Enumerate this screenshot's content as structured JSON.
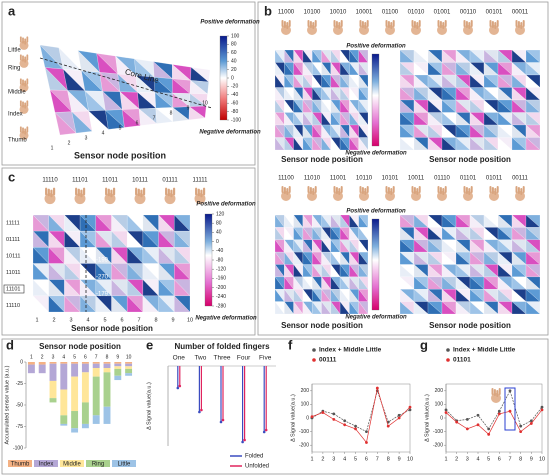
{
  "panels": {
    "a": {
      "label": "a",
      "fingers": [
        "Little",
        "Ring",
        "Middle",
        "Index",
        "Thumb"
      ],
      "core_line": "Core Line",
      "positive": "Positive deformation",
      "negative": "Negative deformation",
      "colorbar_ticks": [
        100,
        80,
        60,
        40,
        20,
        0,
        -20,
        -40,
        -60,
        -80,
        -100
      ],
      "xticks": [
        1,
        2,
        3,
        4,
        5,
        6,
        7,
        8,
        9,
        10
      ],
      "xlabel": "Sensor node position"
    },
    "b": {
      "label": "b",
      "codes_top": [
        "11000",
        "10100",
        "10010",
        "10001",
        "01100",
        "01010",
        "01001",
        "00110",
        "00101",
        "00011"
      ],
      "codes_bottom": [
        "11100",
        "11010",
        "11001",
        "10110",
        "10101",
        "10011",
        "01110",
        "01101",
        "01011",
        "00111"
      ],
      "positive": "Positive deformation",
      "negative": "Negative deformation",
      "xlabel": "Sensor node position"
    },
    "c": {
      "label": "c",
      "codes": [
        "11110",
        "11101",
        "11011",
        "10111",
        "01111",
        "11111"
      ],
      "rows": [
        "11111",
        "01111",
        "10111",
        "11011",
        "11101",
        "11110"
      ],
      "xticks": [
        1,
        2,
        3,
        4,
        5,
        6,
        7,
        8,
        9,
        10
      ],
      "colorbar_ticks": [
        120,
        80,
        40,
        0,
        -40,
        -80,
        -120,
        -160,
        -200,
        -240,
        -280
      ],
      "annotations": [
        -199,
        -270,
        -179
      ],
      "positive": "Positive deformation",
      "negative": "Negative deformation",
      "xlabel": "Sensor node position"
    }
  },
  "chart_data": [
    {
      "panel_label": "d",
      "type": "bar",
      "stacked": true,
      "title": "Sensor node position",
      "ylabel": "Accumulated sensor value (a.u.)",
      "categories": [
        "1",
        "2",
        "3",
        "4",
        "5",
        "6",
        "7",
        "8",
        "9",
        "10"
      ],
      "ylim": [
        -100,
        0
      ],
      "yticks": [
        0,
        -25,
        -50,
        -75,
        -100
      ],
      "series": [
        {
          "name": "Thumb",
          "color": "#f4b183",
          "values": [
            -3,
            -3,
            -2,
            -2,
            -2,
            -2,
            -2,
            -2,
            -2,
            -2
          ]
        },
        {
          "name": "Index",
          "color": "#b4a7d6",
          "values": [
            -10,
            -10,
            -20,
            -30,
            -15,
            -10,
            -5,
            -5,
            -3,
            -3
          ]
        },
        {
          "name": "Middle",
          "color": "#ffe699",
          "values": [
            0,
            0,
            -20,
            -30,
            -40,
            -35,
            -10,
            -5,
            -3,
            -3
          ]
        },
        {
          "name": "Ring",
          "color": "#a9d18e",
          "values": [
            0,
            0,
            -5,
            -10,
            -20,
            -25,
            -45,
            -40,
            -8,
            -5
          ]
        },
        {
          "name": "Little",
          "color": "#9dc3e6",
          "values": [
            0,
            0,
            0,
            -2,
            -5,
            -5,
            -10,
            -20,
            -5,
            -3
          ]
        }
      ]
    },
    {
      "panel_label": "e",
      "type": "stem",
      "title": "Number of folded fingers",
      "ylabel": "Δ Signal value(a.u.)",
      "categories": [
        "One",
        "Two",
        "Three",
        "Four",
        "Five"
      ],
      "ylim": [
        -400,
        0
      ],
      "series": [
        {
          "name": "Folded",
          "color": "#3b4cc0",
          "values": [
            -110,
            -230,
            -280,
            -380,
            -330
          ]
        },
        {
          "name": "Unfolded",
          "color": "#e0245e",
          "values": [
            -100,
            -220,
            -270,
            -370,
            -320
          ]
        }
      ]
    },
    {
      "panel_label": "f",
      "type": "line",
      "ylabel": "Δ Signal value(a.u.)",
      "x": [
        1,
        2,
        3,
        4,
        5,
        6,
        7,
        8,
        9,
        10
      ],
      "xlim": [
        1,
        10
      ],
      "xticks": [
        1,
        2,
        3,
        4,
        5,
        6,
        7,
        8,
        9,
        10
      ],
      "ylim": [
        -250,
        250
      ],
      "yticks": [
        200,
        100,
        0,
        -100,
        -200
      ],
      "legend": "top-left",
      "series": [
        {
          "name": "Index + Middle Little",
          "color": "#555555",
          "values": [
            0,
            50,
            30,
            -20,
            -60,
            -100,
            200,
            -30,
            20,
            60
          ]
        },
        {
          "name": "00111",
          "color": "#e03030",
          "values": [
            10,
            40,
            -10,
            -50,
            -80,
            -180,
            220,
            -60,
            0,
            80
          ]
        }
      ]
    },
    {
      "panel_label": "g",
      "type": "line",
      "ylabel": "Δ Signal value(a.u.)",
      "x": [
        1,
        2,
        3,
        4,
        5,
        6,
        7,
        8,
        9,
        10
      ],
      "xlim": [
        1,
        10
      ],
      "xticks": [
        1,
        2,
        3,
        4,
        5,
        6,
        7,
        8,
        9,
        10
      ],
      "ylim": [
        -250,
        250
      ],
      "yticks": [
        200,
        100,
        0,
        -100,
        -200
      ],
      "legend": "top-left",
      "series": [
        {
          "name": "Index + Middle Little",
          "color": "#555555",
          "values": [
            60,
            -20,
            -10,
            20,
            -80,
            50,
            200,
            -60,
            -20,
            80
          ]
        },
        {
          "name": "01101",
          "color": "#e03030",
          "values": [
            40,
            -30,
            -80,
            -50,
            -120,
            30,
            50,
            -100,
            -40,
            60
          ]
        }
      ]
    }
  ]
}
